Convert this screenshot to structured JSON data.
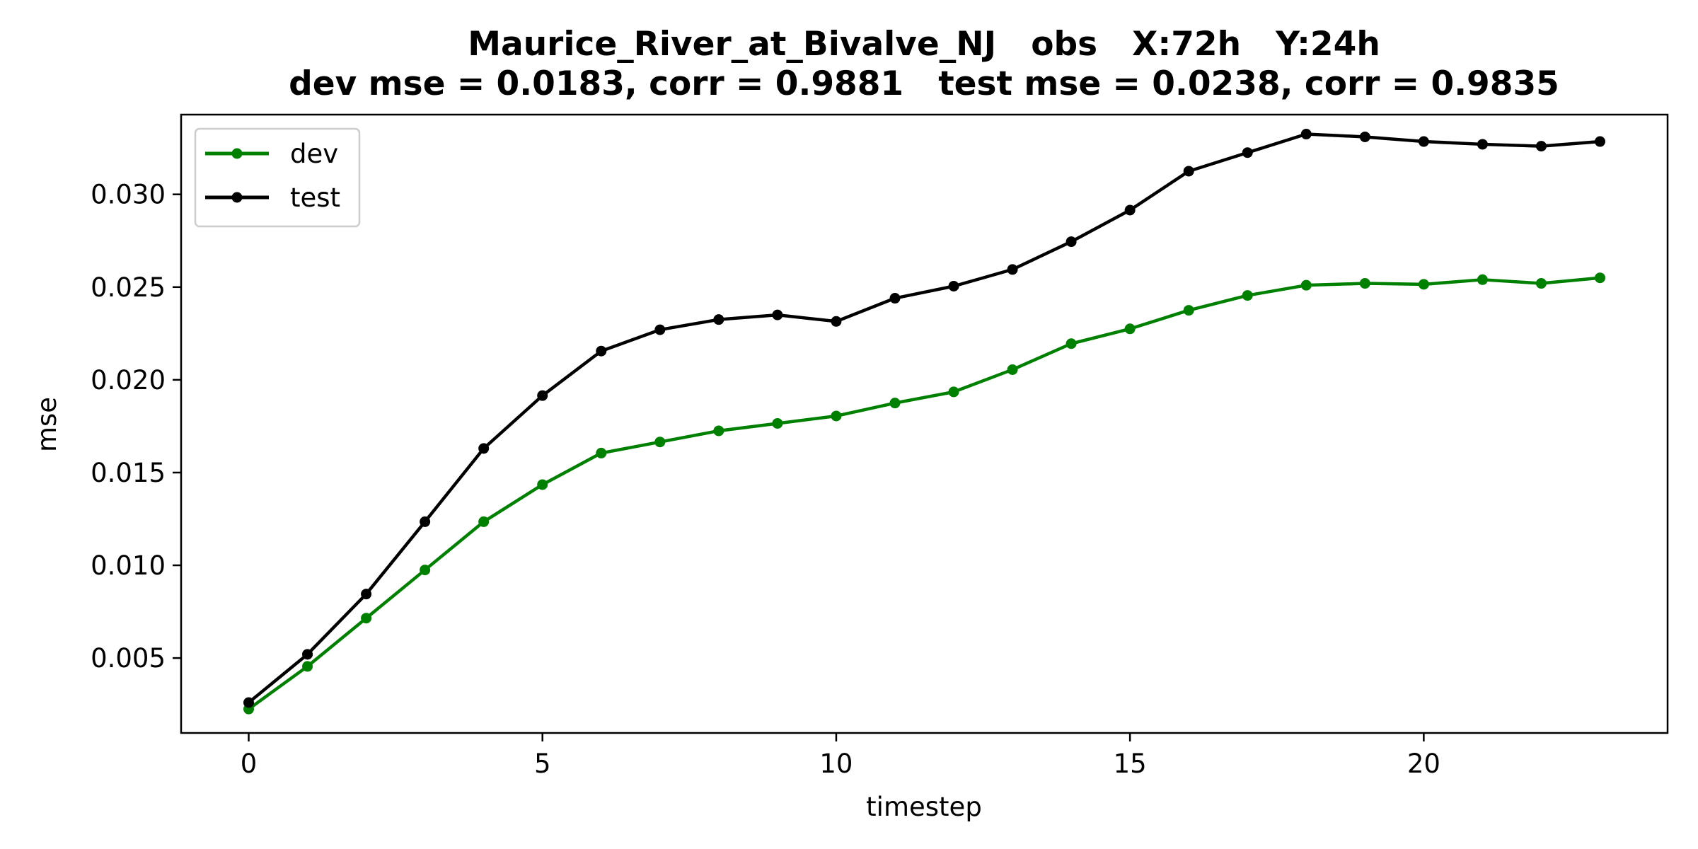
{
  "chart_data": {
    "type": "line",
    "title": "Maurice_River_at_Bivalve_NJ   obs   X:72h   Y:24h",
    "subtitle": "dev mse = 0.0183, corr = 0.9881   test mse = 0.0238, corr = 0.9835",
    "xlabel": "timestep",
    "ylabel": "mse",
    "xlim": [
      -1.15,
      24.15
    ],
    "ylim": [
      0.00096,
      0.0343
    ],
    "xticks": [
      0,
      5,
      10,
      15,
      20
    ],
    "xtick_labels": [
      "0",
      "5",
      "10",
      "15",
      "20"
    ],
    "yticks": [
      0.005,
      0.01,
      0.015,
      0.02,
      0.025,
      0.03
    ],
    "ytick_labels": [
      "0.005",
      "0.010",
      "0.015",
      "0.020",
      "0.025",
      "0.030"
    ],
    "grid": false,
    "legend_position": "top-left",
    "x": [
      0,
      1,
      2,
      3,
      4,
      5,
      6,
      7,
      8,
      9,
      10,
      11,
      12,
      13,
      14,
      15,
      16,
      17,
      18,
      19,
      20,
      21,
      22,
      23
    ],
    "series": [
      {
        "name": "dev",
        "color": "#008000",
        "marker": "circle",
        "values": [
          0.00225,
          0.00455,
          0.00715,
          0.00975,
          0.01235,
          0.01435,
          0.01605,
          0.01665,
          0.01725,
          0.01765,
          0.01805,
          0.01875,
          0.01935,
          0.02055,
          0.02195,
          0.02275,
          0.02375,
          0.02455,
          0.0251,
          0.0252,
          0.02515,
          0.0254,
          0.0252,
          0.0255
        ]
      },
      {
        "name": "test",
        "color": "#000000",
        "marker": "circle",
        "values": [
          0.0026,
          0.0052,
          0.00845,
          0.01235,
          0.0163,
          0.01915,
          0.02155,
          0.0227,
          0.02325,
          0.0235,
          0.02315,
          0.0244,
          0.02505,
          0.02595,
          0.02745,
          0.02915,
          0.03125,
          0.03225,
          0.03325,
          0.0331,
          0.03285,
          0.0327,
          0.0326,
          0.03285
        ]
      }
    ]
  }
}
